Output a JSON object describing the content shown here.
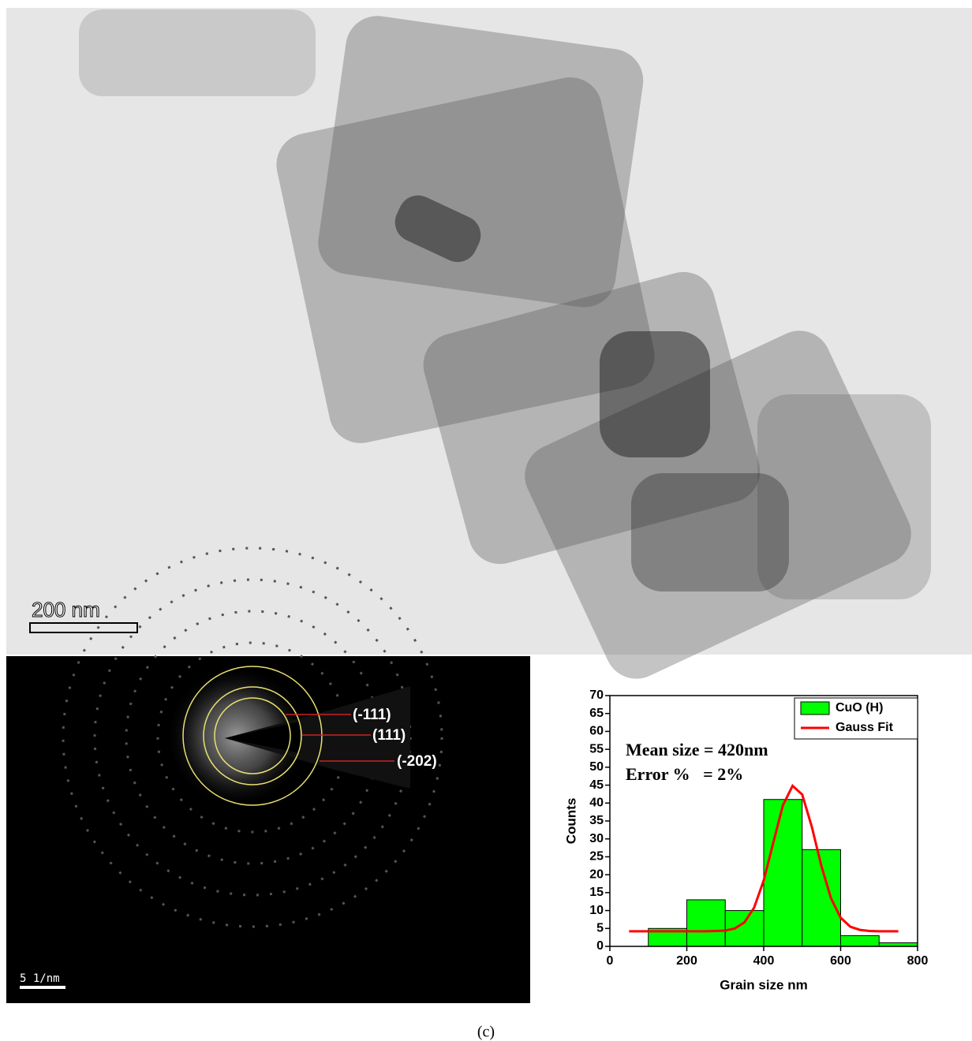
{
  "tem_image": {
    "scale_bar": "200 nm"
  },
  "saed_image": {
    "scale_bar": "5 1/nm",
    "ring_labels": [
      "(-111)",
      "(111)",
      "(-202)"
    ]
  },
  "caption": "(c)",
  "chart_data": {
    "type": "histogram",
    "x_label": "Grain size nm",
    "y_label": "Counts",
    "annotations": [
      "Mean size = 420nm",
      "Error %   = 2%"
    ],
    "bins": [
      100,
      200,
      300,
      400,
      500,
      600,
      700,
      800
    ],
    "series": [
      {
        "name": "CuO (H)",
        "color": "#00ff00",
        "type": "histogram",
        "values": [
          5,
          13,
          10,
          41,
          27,
          3,
          1
        ]
      },
      {
        "name": "Gauss Fit",
        "color": "#ff0000",
        "type": "line",
        "x": [
          50,
          75,
          100,
          125,
          150,
          175,
          200,
          225,
          250,
          275,
          300,
          325,
          350,
          375,
          400,
          425,
          450,
          475,
          500,
          525,
          550,
          575,
          600,
          625,
          650,
          675,
          700,
          725,
          750
        ],
        "values": [
          4.2,
          4.2,
          4.2,
          4.2,
          4.2,
          4.2,
          4.2,
          4.2,
          4.2,
          4.3,
          4.4,
          5.0,
          6.7,
          10.8,
          18.4,
          29.0,
          39.4,
          44.8,
          42.4,
          33.4,
          22.4,
          13.4,
          8.0,
          5.5,
          4.6,
          4.3,
          4.2,
          4.2,
          4.2
        ]
      }
    ],
    "xlim": [
      0,
      800
    ],
    "xticks": [
      0,
      200,
      400,
      600,
      800
    ],
    "ylim": [
      0,
      70
    ],
    "yticks": [
      0,
      5,
      10,
      15,
      20,
      25,
      30,
      35,
      40,
      45,
      50,
      55,
      60,
      65,
      70
    ],
    "legend": "upper right"
  }
}
